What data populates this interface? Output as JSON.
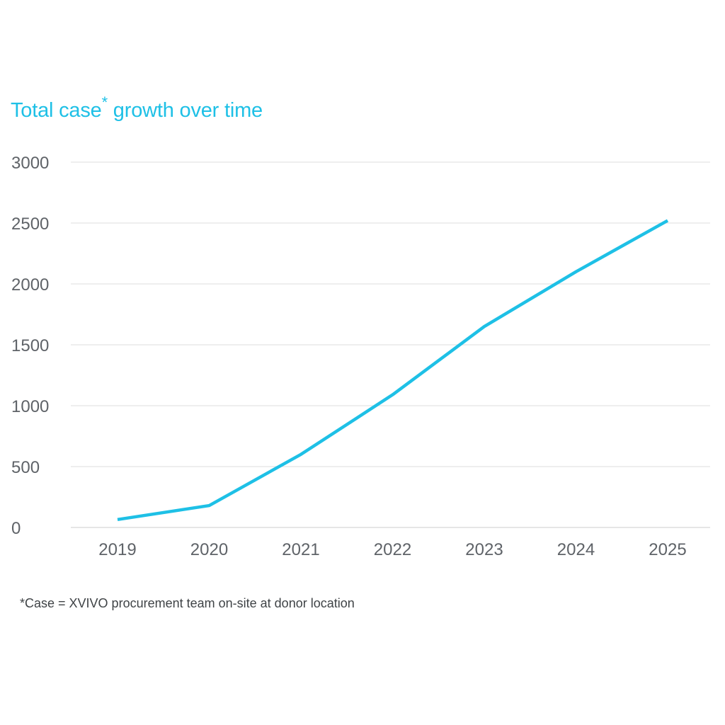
{
  "title": {
    "text": "Total case",
    "marker": "*",
    "rest": " growth over time"
  },
  "footnote": "*Case = XVIVO procurement team on-site at donor location",
  "colors": {
    "line": "#1ec0e6",
    "title": "#1ec0e6",
    "grid": "#e3e3e3",
    "tick_text": "#5f6368"
  },
  "chart_data": {
    "type": "line",
    "title": "Total case* growth over time",
    "xlabel": "",
    "ylabel": "",
    "categories": [
      "2019",
      "2020",
      "2021",
      "2022",
      "2023",
      "2024",
      "2025"
    ],
    "series": [
      {
        "values": [
          65,
          180,
          600,
          1090,
          1650,
          2100,
          2520
        ]
      }
    ],
    "yticks": [
      0,
      500,
      1000,
      1500,
      2000,
      2500,
      3000
    ],
    "ylim": [
      0,
      3000
    ],
    "grid": "horizontal",
    "legend": "none"
  }
}
